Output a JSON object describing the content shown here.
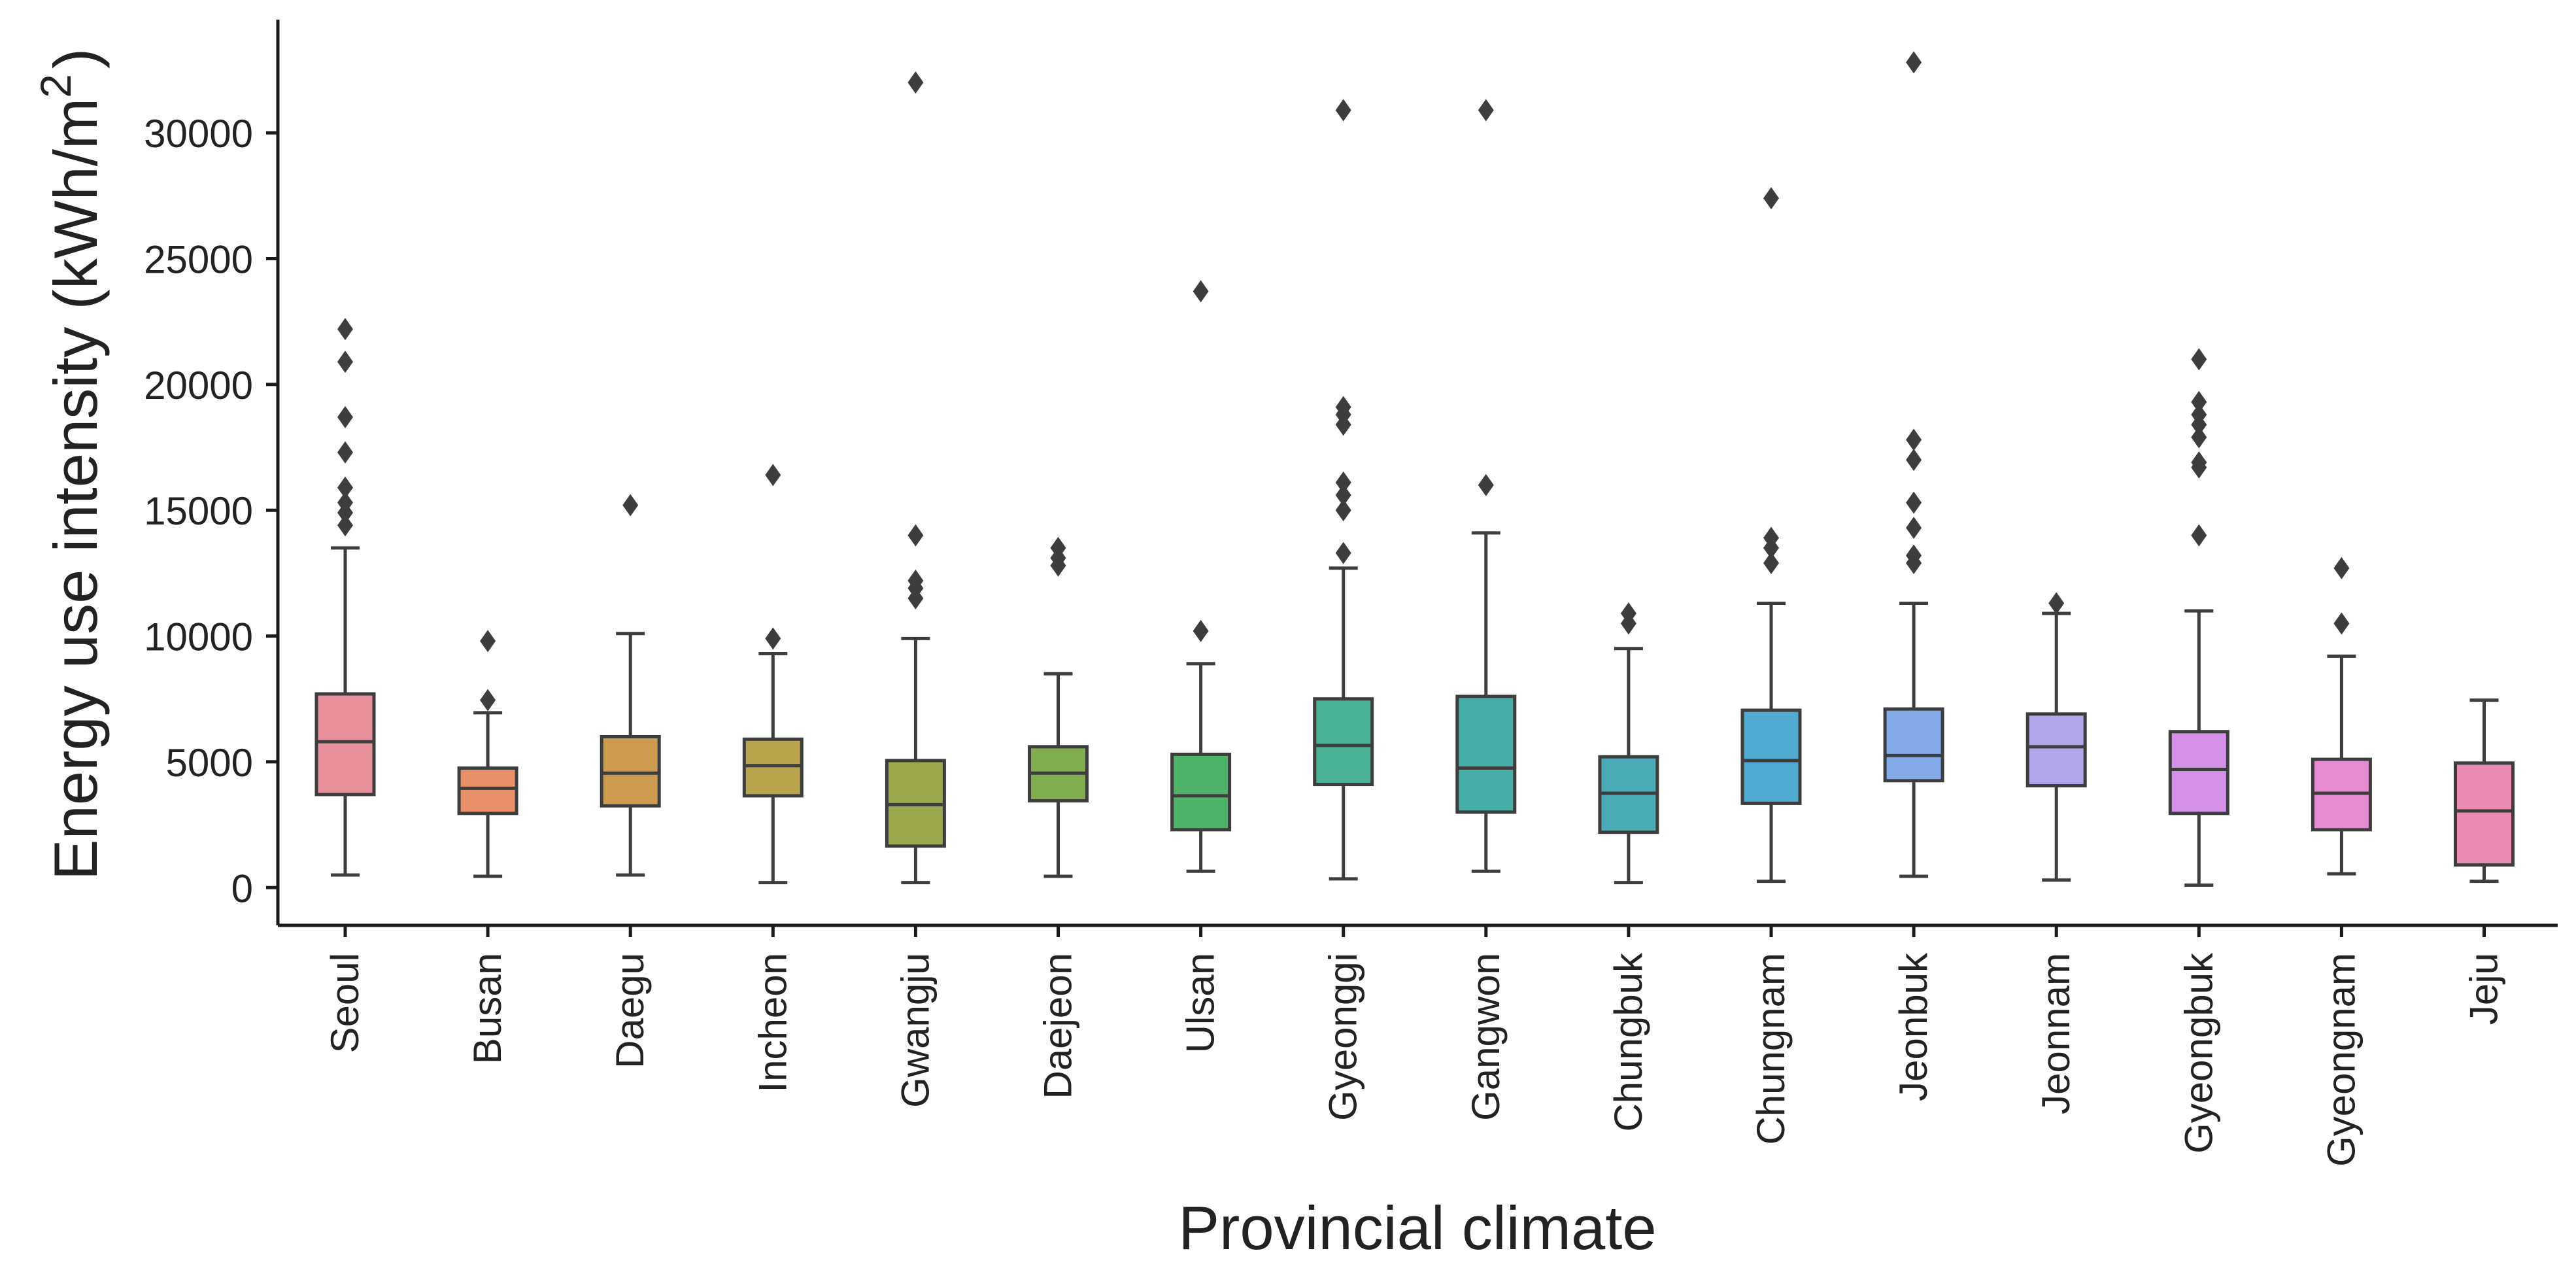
{
  "chart_data": {
    "type": "box",
    "title": "",
    "xlabel": "Provincial climate",
    "ylabel": {
      "main": "Energy use intensity (kWh/m",
      "superscript": "2",
      "close": ")"
    },
    "ylim": [
      -1500,
      34500
    ],
    "yticks": [
      0,
      5000,
      10000,
      15000,
      20000,
      25000,
      30000
    ],
    "categories": [
      "Seoul",
      "Busan",
      "Daegu",
      "Incheon",
      "Gwangju",
      "Daejeon",
      "Ulsan",
      "Gyeonggi",
      "Gangwon",
      "Chungbuk",
      "Chungnam",
      "Jeonbuk",
      "Jeonnam",
      "Gyeongbuk",
      "Gyeongnam",
      "Jeju"
    ],
    "boxes": [
      {
        "category": "Seoul",
        "color": "#e8919c",
        "whisker_low": 500,
        "q1": 3700,
        "median": 5800,
        "q3": 7700,
        "whisker_high": 13500,
        "outliers": [
          14400,
          14900,
          15300,
          15900,
          17300,
          18700,
          20900,
          22200
        ]
      },
      {
        "category": "Busan",
        "color": "#e8906a",
        "whisker_low": 450,
        "q1": 2950,
        "median": 3950,
        "q3": 4750,
        "whisker_high": 6950,
        "outliers": [
          7450,
          9800
        ]
      },
      {
        "category": "Daegu",
        "color": "#cc9b4f",
        "whisker_low": 500,
        "q1": 3250,
        "median": 4550,
        "q3": 6000,
        "whisker_high": 10100,
        "outliers": [
          15200
        ]
      },
      {
        "category": "Incheon",
        "color": "#b9a34c",
        "whisker_low": 200,
        "q1": 3650,
        "median": 4850,
        "q3": 5900,
        "whisker_high": 9300,
        "outliers": [
          9900,
          16400
        ]
      },
      {
        "category": "Gwangju",
        "color": "#9ba84d",
        "whisker_low": 200,
        "q1": 1650,
        "median": 3300,
        "q3": 5050,
        "whisker_high": 9900,
        "outliers": [
          11500,
          11900,
          12200,
          14000,
          32000
        ]
      },
      {
        "category": "Daejeon",
        "color": "#80ae4f",
        "whisker_low": 450,
        "q1": 3450,
        "median": 4550,
        "q3": 5600,
        "whisker_high": 8500,
        "outliers": [
          12800,
          13100,
          13500
        ]
      },
      {
        "category": "Ulsan",
        "color": "#4fb269",
        "whisker_low": 650,
        "q1": 2300,
        "median": 3650,
        "q3": 5300,
        "whisker_high": 8900,
        "outliers": [
          10200,
          23700
        ]
      },
      {
        "category": "Gyeonggi",
        "color": "#4ab096",
        "whisker_low": 350,
        "q1": 4100,
        "median": 5650,
        "q3": 7500,
        "whisker_high": 12700,
        "outliers": [
          13300,
          15000,
          15600,
          16100,
          18400,
          18800,
          19100,
          30900
        ]
      },
      {
        "category": "Gangwon",
        "color": "#47ada6",
        "whisker_low": 650,
        "q1": 3000,
        "median": 4750,
        "q3": 7600,
        "whisker_high": 14100,
        "outliers": [
          16000,
          30900
        ]
      },
      {
        "category": "Chungbuk",
        "color": "#4aabb6",
        "whisker_low": 200,
        "q1": 2200,
        "median": 3750,
        "q3": 5200,
        "whisker_high": 9500,
        "outliers": [
          10500,
          10900
        ]
      },
      {
        "category": "Chungnam",
        "color": "#4fa9d0",
        "whisker_low": 250,
        "q1": 3350,
        "median": 5050,
        "q3": 7050,
        "whisker_high": 11300,
        "outliers": [
          12900,
          13500,
          13900,
          27400
        ]
      },
      {
        "category": "Jeonbuk",
        "color": "#83aae6",
        "whisker_low": 450,
        "q1": 4250,
        "median": 5250,
        "q3": 7100,
        "whisker_high": 11300,
        "outliers": [
          12900,
          13200,
          14300,
          15300,
          17000,
          17800,
          32800
        ]
      },
      {
        "category": "Jeonnam",
        "color": "#b1a6ea",
        "whisker_low": 300,
        "q1": 4050,
        "median": 5600,
        "q3": 6900,
        "whisker_high": 10900,
        "outliers": [
          11300
        ]
      },
      {
        "category": "Gyeongbuk",
        "color": "#d591e8",
        "whisker_low": 100,
        "q1": 2950,
        "median": 4700,
        "q3": 6200,
        "whisker_high": 11000,
        "outliers": [
          14000,
          16700,
          16900,
          17900,
          18400,
          18800,
          19300,
          21000
        ]
      },
      {
        "category": "Gyeongnam",
        "color": "#e68ad2",
        "whisker_low": 550,
        "q1": 2300,
        "median": 3750,
        "q3": 5100,
        "whisker_high": 9200,
        "outliers": [
          10500,
          12700
        ]
      },
      {
        "category": "Jeju",
        "color": "#e88cb4",
        "whisker_low": 250,
        "q1": 900,
        "median": 3050,
        "q3": 4950,
        "whisker_high": 7450,
        "outliers": []
      }
    ],
    "grid": false,
    "legend": "none",
    "styles": {
      "line_color": "#3d3d3d",
      "axis_color": "#1a1a1a",
      "outlier_color": "#3d3d3d"
    }
  }
}
